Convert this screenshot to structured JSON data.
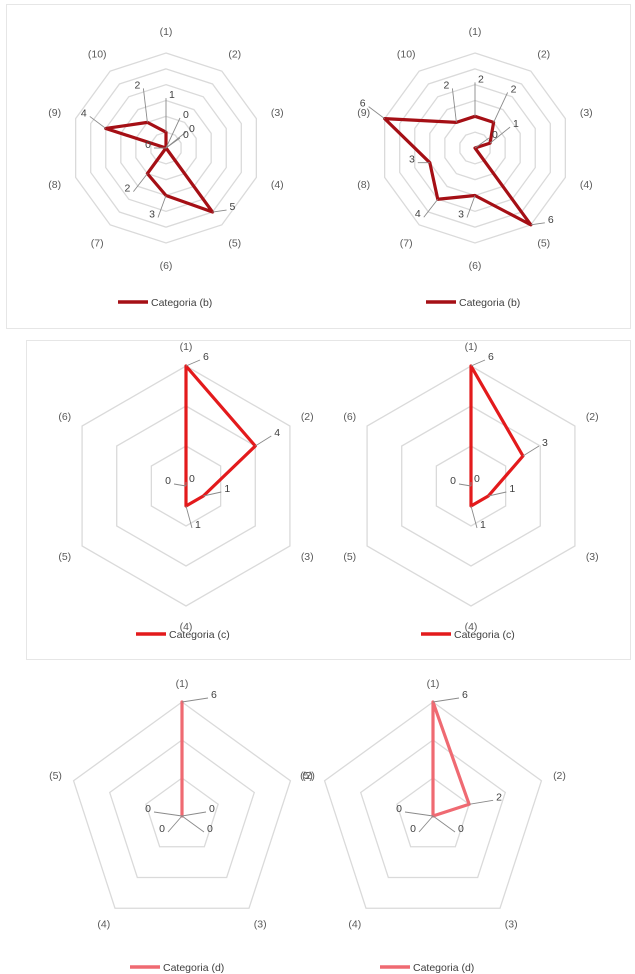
{
  "chart_data": [
    {
      "type": "radar",
      "categories": [
        "(1)",
        "(2)",
        "(3)",
        "(4)",
        "(5)",
        "(6)",
        "(7)",
        "(8)",
        "(9)",
        "(10)"
      ],
      "series": [
        {
          "name": "Categoria (b)",
          "values": [
            1,
            0,
            0,
            0,
            5,
            3,
            2,
            0,
            4,
            2
          ]
        }
      ],
      "rmax": 6,
      "rings": 6,
      "legend": "bottom",
      "color": "#a50f15"
    },
    {
      "type": "radar",
      "categories": [
        "(1)",
        "(2)",
        "(3)",
        "(4)",
        "(5)",
        "(6)",
        "(7)",
        "(8)",
        "(9)",
        "(10)"
      ],
      "series": [
        {
          "name": "Categoria (b)",
          "values": [
            2,
            2,
            1,
            0,
            6,
            3,
            4,
            3,
            6,
            2
          ]
        }
      ],
      "rmax": 6,
      "rings": 6,
      "legend": "bottom",
      "color": "#a50f15"
    },
    {
      "type": "radar",
      "categories": [
        "(1)",
        "(2)",
        "(3)",
        "(4)",
        "(5)",
        "(6)"
      ],
      "series": [
        {
          "name": "Categoria (c)",
          "values": [
            6,
            4,
            1,
            1,
            0,
            0
          ]
        }
      ],
      "rmax": 6,
      "rings": 3,
      "legend": "bottom",
      "color": "#e31a1c"
    },
    {
      "type": "radar",
      "categories": [
        "(1)",
        "(2)",
        "(3)",
        "(4)",
        "(5)",
        "(6)"
      ],
      "series": [
        {
          "name": "Categoria (c)",
          "values": [
            6,
            3,
            1,
            1,
            0,
            0
          ]
        }
      ],
      "rmax": 6,
      "rings": 3,
      "legend": "bottom",
      "color": "#e31a1c"
    },
    {
      "type": "radar",
      "categories": [
        "(1)",
        "(2)",
        "(3)",
        "(4)",
        "(5)"
      ],
      "series": [
        {
          "name": "Categoria (d)",
          "values": [
            6,
            0,
            0,
            0,
            0
          ]
        }
      ],
      "rmax": 6,
      "rings": 3,
      "legend": "bottom",
      "color": "#ef6a72"
    },
    {
      "type": "radar",
      "categories": [
        "(1)",
        "(2)",
        "(3)",
        "(4)",
        "(5)"
      ],
      "series": [
        {
          "name": "Categoria (d)",
          "values": [
            6,
            2,
            0,
            0,
            0
          ]
        }
      ],
      "rmax": 6,
      "rings": 3,
      "legend": "bottom",
      "color": "#ef6a72"
    }
  ]
}
